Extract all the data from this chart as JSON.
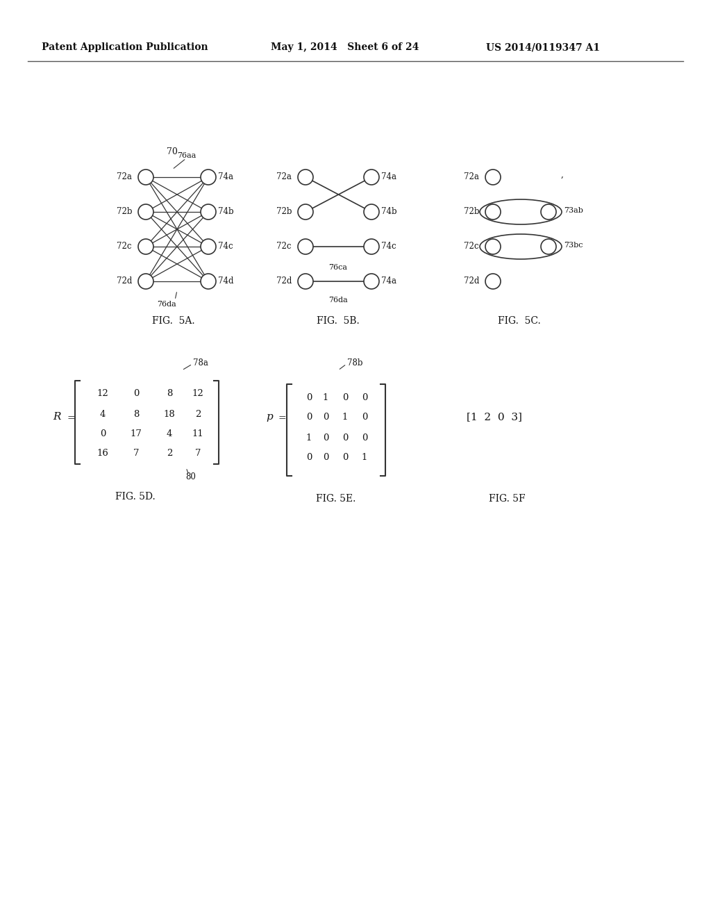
{
  "header_left": "Patent Application Publication",
  "header_mid": "May 1, 2014   Sheet 6 of 24",
  "header_right": "US 2014/0119347 A1",
  "fig5a_label": "FIG.  5A.",
  "fig5b_label": "FIG.  5B.",
  "fig5c_label": "FIG.  5C.",
  "fig5d_label": "FIG. 5D.",
  "fig5e_label": "FIG. 5E.",
  "fig5f_label": "FIG. 5F",
  "bg_color": "#ffffff",
  "line_color": "#333333",
  "node_color": "#ffffff",
  "node_edge_color": "#333333",
  "text_color": "#111111"
}
